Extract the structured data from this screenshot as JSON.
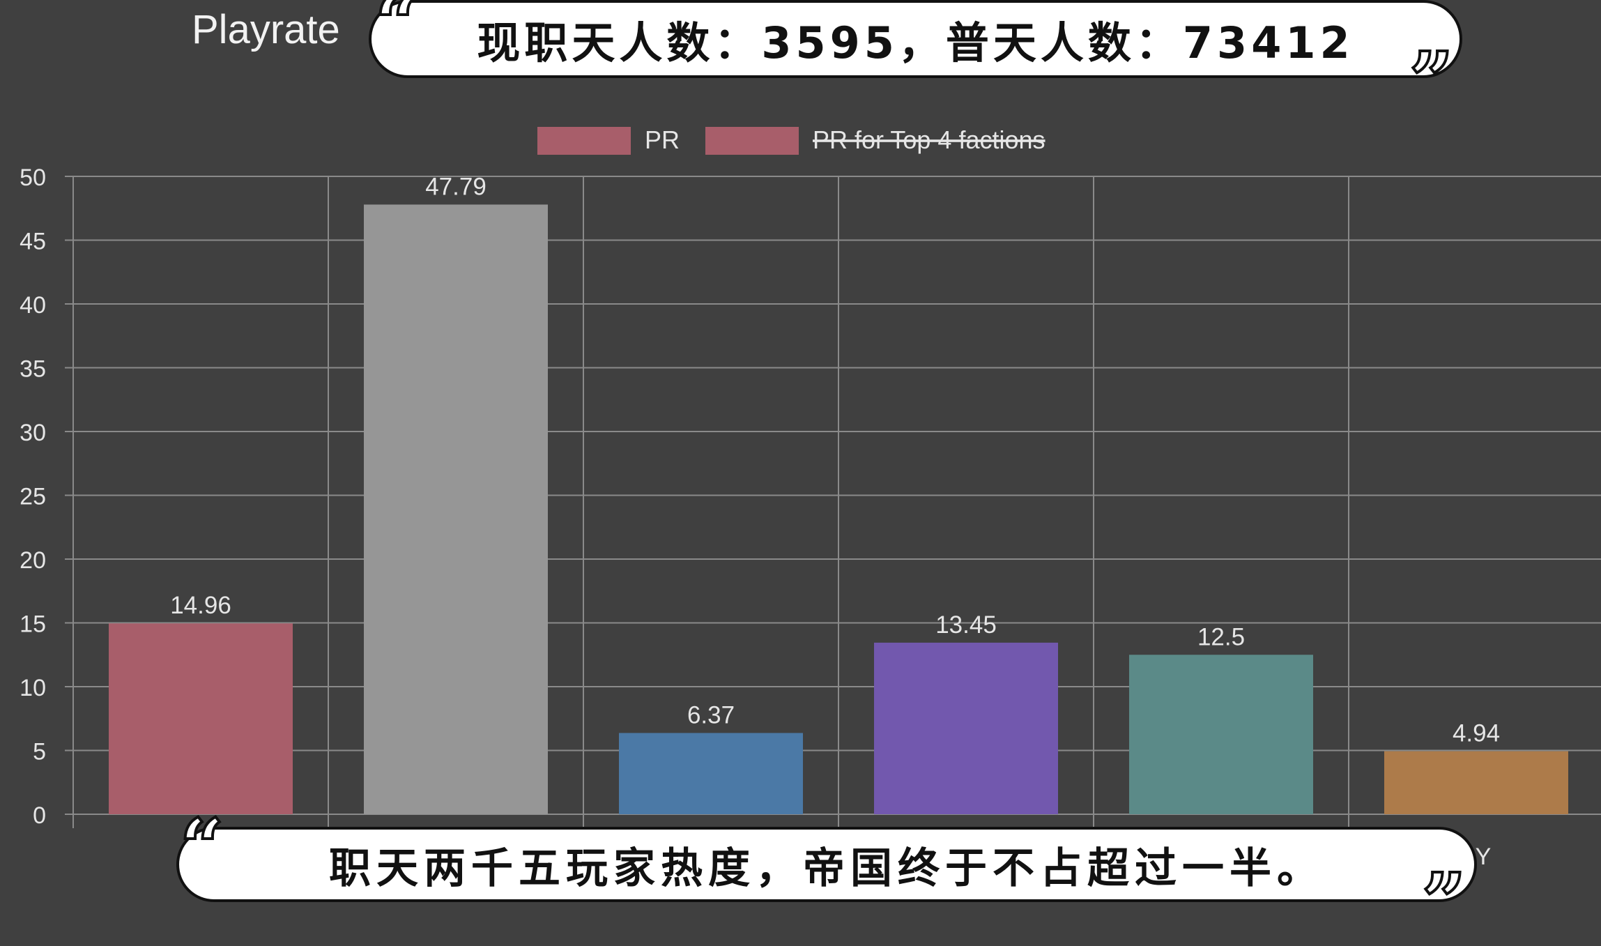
{
  "chart_data": {
    "type": "bar",
    "title": "Playrate",
    "legend": {
      "placement": "top",
      "items": [
        {
          "label": "PR",
          "color": "#a85e6a",
          "struck": false
        },
        {
          "label": "PR for Top 4 factions",
          "color": "#a85e6a",
          "struck": true
        }
      ]
    },
    "y_axis": {
      "min": 0,
      "max": 50,
      "ticks": [
        "0",
        "5",
        "10",
        "15",
        "20",
        "25",
        "30",
        "35",
        "40",
        "45",
        "50"
      ]
    },
    "grid": true,
    "categories": [
      "",
      "",
      "",
      "",
      "",
      "Y"
    ],
    "series": [
      {
        "name": "PR",
        "values": [
          14.96,
          47.79,
          6.37,
          13.45,
          12.5,
          4.94
        ],
        "labels": [
          "14.96",
          "47.79",
          "6.37",
          "13.45",
          "12.5",
          "4.94"
        ],
        "colors": [
          "#a85e6a",
          "#969696",
          "#4b79a6",
          "#7258ae",
          "#5b8a88",
          "#ad7b4a"
        ]
      }
    ]
  },
  "captions": {
    "top": "现职天人数：3595，普天人数：73412",
    "bottom": "职天两千五玩家热度，帝国终于不占超过一半。"
  },
  "colors": {
    "background": "#404040",
    "grid": "#8a8a8a",
    "text": "#e6e6e6",
    "caption_bg": "#ffffff",
    "caption_text": "#111111"
  }
}
